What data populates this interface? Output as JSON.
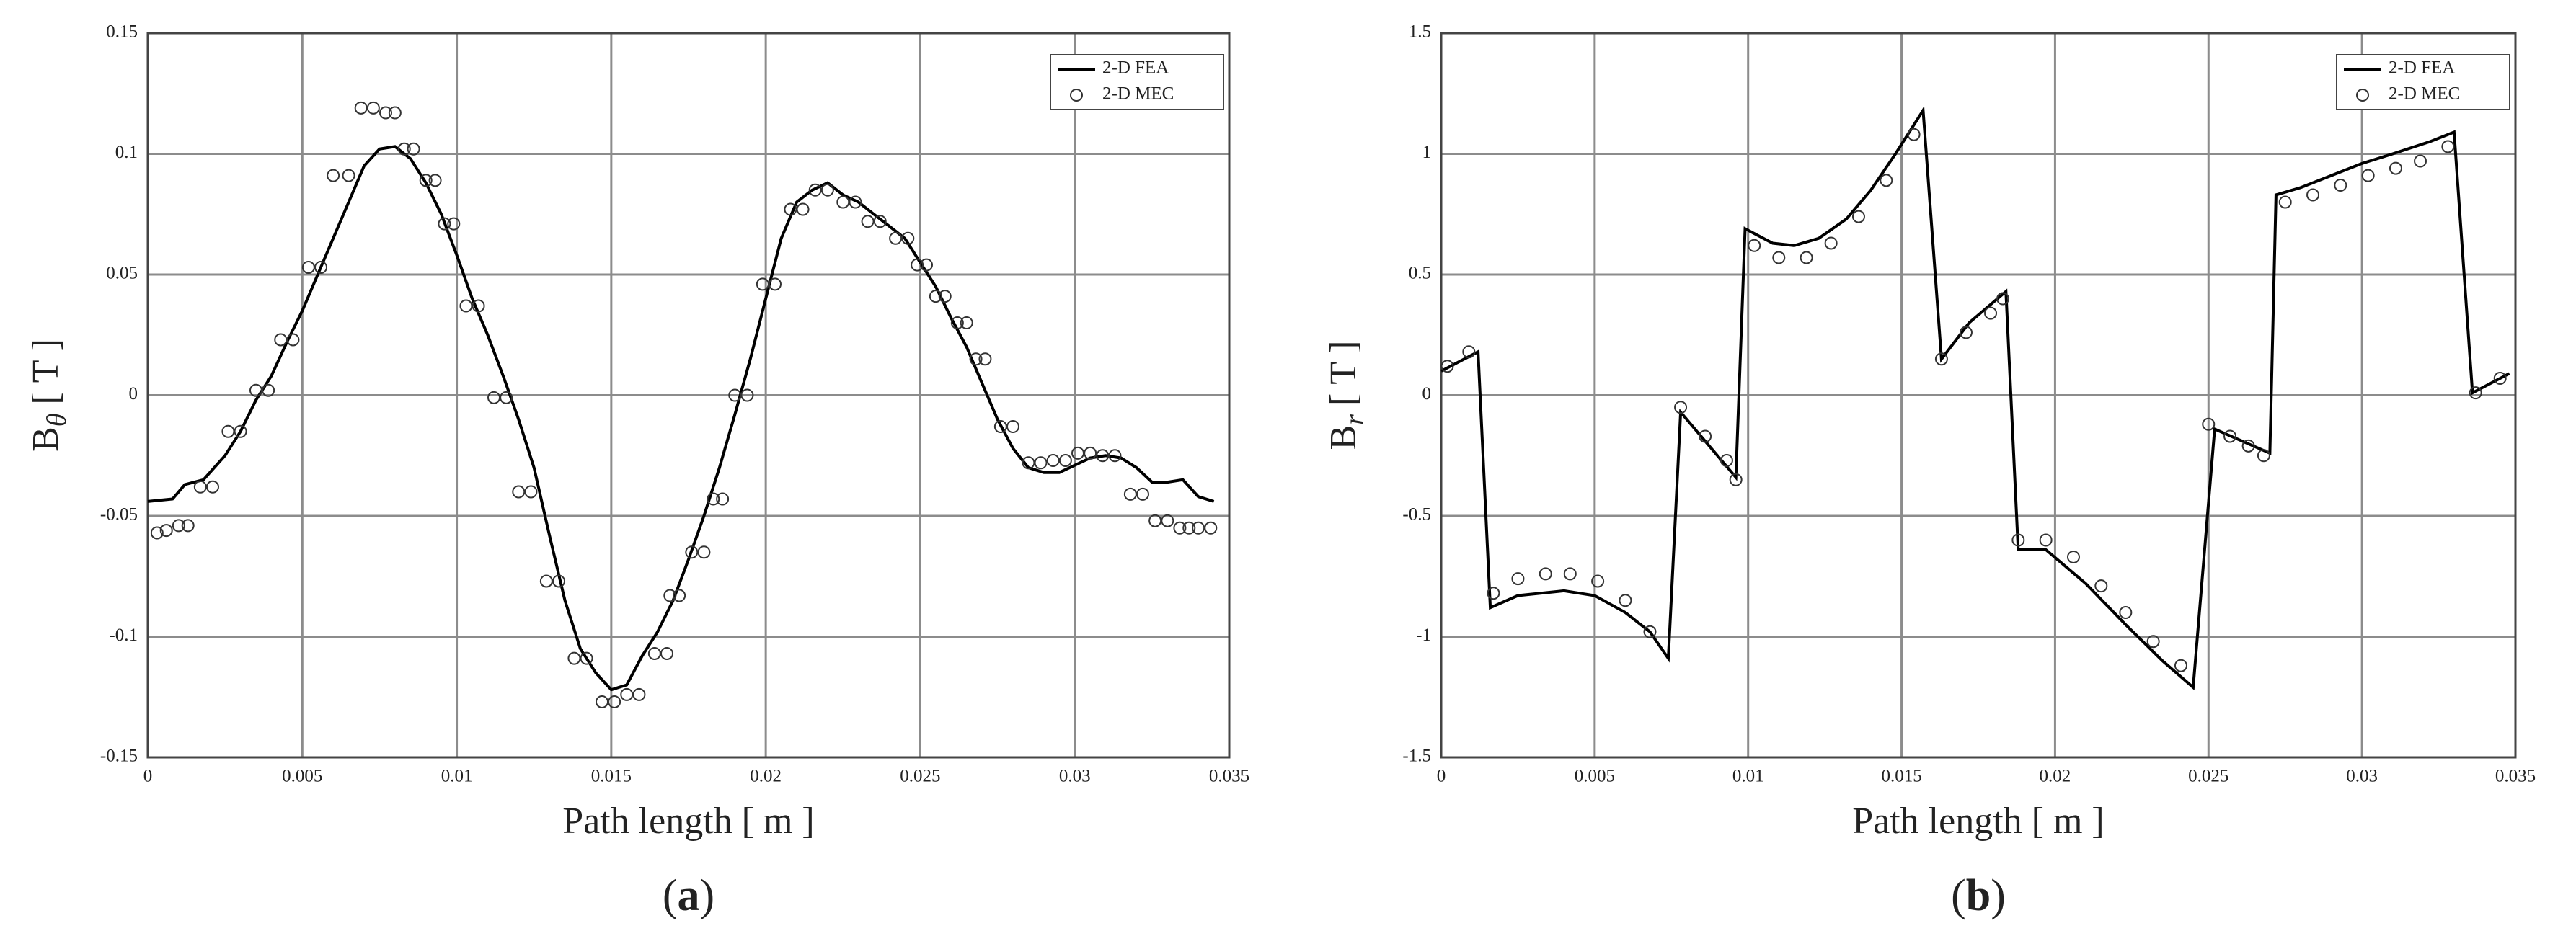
{
  "chart_data": [
    {
      "type": "line",
      "label_open": "(",
      "label_letter": "a",
      "label_close": ")",
      "xlabel": "Path length [ m ]",
      "ylabel": "B",
      "ylabel_sub": "θ",
      "ylabel_unit": "[ T ]",
      "xlim": [
        0,
        0.035
      ],
      "xticks": [
        0,
        0.005,
        0.01,
        0.015,
        0.02,
        0.025,
        0.03,
        0.035
      ],
      "ylim": [
        -0.15,
        0.15
      ],
      "yticks": [
        -0.15,
        -0.1,
        -0.05,
        0,
        0.05,
        0.1,
        0.15
      ],
      "grid": true,
      "legend": "upper right",
      "series": [
        {
          "name": "2-D FEA",
          "color": "#000000",
          "style": "line",
          "x": [
            0,
            0.0008,
            0.0012,
            0.0018,
            0.0025,
            0.003,
            0.0035,
            0.004,
            0.0045,
            0.005,
            0.0055,
            0.006,
            0.0065,
            0.007,
            0.0075,
            0.008,
            0.0085,
            0.009,
            0.0095,
            0.01,
            0.0105,
            0.011,
            0.0115,
            0.012,
            0.0125,
            0.013,
            0.0135,
            0.014,
            0.0145,
            0.015,
            0.0155,
            0.016,
            0.0165,
            0.017,
            0.0175,
            0.018,
            0.0185,
            0.019,
            0.0195,
            0.02,
            0.0205,
            0.021,
            0.0215,
            0.022,
            0.0225,
            0.023,
            0.0235,
            0.024,
            0.0245,
            0.025,
            0.0255,
            0.026,
            0.0265,
            0.027,
            0.0275,
            0.028,
            0.0285,
            0.029,
            0.0295,
            0.03,
            0.0305,
            0.031,
            0.0315,
            0.032,
            0.0325,
            0.033,
            0.0335,
            0.034,
            0.0345
          ],
          "values": [
            -0.044,
            -0.043,
            -0.037,
            -0.035,
            -0.025,
            -0.015,
            -0.002,
            0.008,
            0.022,
            0.035,
            0.05,
            0.065,
            0.08,
            0.095,
            0.102,
            0.103,
            0.098,
            0.088,
            0.075,
            0.058,
            0.04,
            0.025,
            0.008,
            -0.01,
            -0.03,
            -0.058,
            -0.085,
            -0.105,
            -0.115,
            -0.122,
            -0.12,
            -0.108,
            -0.098,
            -0.085,
            -0.068,
            -0.05,
            -0.03,
            -0.008,
            0.015,
            0.04,
            0.065,
            0.08,
            0.085,
            0.088,
            0.083,
            0.08,
            0.075,
            0.07,
            0.065,
            0.055,
            0.045,
            0.032,
            0.02,
            0.005,
            -0.01,
            -0.022,
            -0.03,
            -0.032,
            -0.032,
            -0.029,
            -0.026,
            -0.025,
            -0.026,
            -0.03,
            -0.036,
            -0.036,
            -0.035,
            -0.042,
            -0.044
          ]
        },
        {
          "name": "2-D MEC",
          "color": "#333333",
          "style": "markers",
          "x": [
            0.0003,
            0.0006,
            0.001,
            0.0013,
            0.0017,
            0.0021,
            0.0026,
            0.003,
            0.0035,
            0.0039,
            0.0043,
            0.0047,
            0.0052,
            0.0056,
            0.006,
            0.0065,
            0.0069,
            0.0073,
            0.0077,
            0.008,
            0.0083,
            0.0086,
            0.009,
            0.0093,
            0.0096,
            0.0099,
            0.0103,
            0.0107,
            0.0112,
            0.0116,
            0.012,
            0.0124,
            0.0129,
            0.0133,
            0.0138,
            0.0142,
            0.0147,
            0.0151,
            0.0155,
            0.0159,
            0.0164,
            0.0168,
            0.0169,
            0.0172,
            0.0176,
            0.018,
            0.0183,
            0.0186,
            0.019,
            0.0194,
            0.0199,
            0.0203,
            0.0208,
            0.0212,
            0.0216,
            0.022,
            0.0225,
            0.0229,
            0.0233,
            0.0237,
            0.0242,
            0.0246,
            0.0249,
            0.0252,
            0.0255,
            0.0258,
            0.0262,
            0.0265,
            0.0268,
            0.0271,
            0.0276,
            0.028,
            0.0285,
            0.0289,
            0.0293,
            0.0297,
            0.0301,
            0.0305,
            0.0309,
            0.0313,
            0.0318,
            0.0322,
            0.0326,
            0.033,
            0.0334,
            0.0337,
            0.034,
            0.0344
          ],
          "values": [
            -0.057,
            -0.056,
            -0.054,
            -0.054,
            -0.038,
            -0.038,
            -0.015,
            -0.015,
            0.002,
            0.002,
            0.023,
            0.023,
            0.053,
            0.053,
            0.091,
            0.091,
            0.119,
            0.119,
            0.117,
            0.117,
            0.102,
            0.102,
            0.089,
            0.089,
            0.071,
            0.071,
            0.037,
            0.037,
            -0.001,
            -0.001,
            -0.04,
            -0.04,
            -0.077,
            -0.077,
            -0.109,
            -0.109,
            -0.127,
            -0.127,
            -0.124,
            -0.124,
            -0.107,
            -0.107,
            -0.083,
            -0.083,
            -0.065,
            -0.065,
            -0.043,
            -0.043,
            0,
            0,
            0.046,
            0.046,
            0.077,
            0.077,
            0.085,
            0.085,
            0.08,
            0.08,
            0.072,
            0.072,
            0.065,
            0.065,
            0.054,
            0.054,
            0.041,
            0.041,
            0.03,
            0.03,
            0.015,
            0.015,
            -0.013,
            -0.013,
            -0.028,
            -0.028,
            -0.027,
            -0.027,
            -0.024,
            -0.024,
            -0.025,
            -0.025,
            -0.041,
            -0.041,
            -0.052,
            -0.052,
            -0.055,
            -0.055,
            -0.055,
            -0.055
          ]
        }
      ]
    },
    {
      "type": "line",
      "label_open": "(",
      "label_letter": "b",
      "label_close": ")",
      "xlabel": "Path length [ m ]",
      "ylabel": "B",
      "ylabel_sub": "r",
      "ylabel_unit": "[ T ]",
      "xlim": [
        0,
        0.035
      ],
      "xticks": [
        0,
        0.005,
        0.01,
        0.015,
        0.02,
        0.025,
        0.03,
        0.035
      ],
      "ylim": [
        -1.5,
        1.5
      ],
      "yticks": [
        -1.5,
        -1,
        -0.5,
        0,
        0.5,
        1,
        1.5
      ],
      "grid": true,
      "legend": "upper right",
      "series": [
        {
          "name": "2-D FEA",
          "color": "#000000",
          "style": "line",
          "x": [
            0,
            0.0012,
            0.0016,
            0.0025,
            0.004,
            0.005,
            0.006,
            0.0068,
            0.0074,
            0.0078,
            0.0088,
            0.0096,
            0.0099,
            0.0108,
            0.0115,
            0.0123,
            0.0132,
            0.014,
            0.0148,
            0.0157,
            0.0163,
            0.0172,
            0.0184,
            0.0188,
            0.0197,
            0.021,
            0.0223,
            0.0235,
            0.0245,
            0.0252,
            0.027,
            0.0272,
            0.028,
            0.029,
            0.03,
            0.031,
            0.0322,
            0.033,
            0.0336,
            0.0348
          ],
          "values": [
            0.1,
            0.18,
            -0.88,
            -0.83,
            -0.81,
            -0.83,
            -0.9,
            -0.98,
            -1.09,
            -0.07,
            -0.22,
            -0.34,
            0.69,
            0.63,
            0.62,
            0.65,
            0.73,
            0.85,
            1,
            1.18,
            0.15,
            0.3,
            0.43,
            -0.64,
            -0.64,
            -0.78,
            -0.95,
            -1.1,
            -1.21,
            -0.14,
            -0.24,
            0.83,
            0.86,
            0.91,
            0.96,
            1,
            1.05,
            1.09,
            0.01,
            0.09
          ]
        },
        {
          "name": "2-D MEC",
          "color": "#333333",
          "style": "markers",
          "x": [
            0.0002,
            0.0009,
            0.0017,
            0.0025,
            0.0034,
            0.0042,
            0.0051,
            0.006,
            0.0068,
            0.0078,
            0.0086,
            0.0093,
            0.0096,
            0.0102,
            0.011,
            0.0119,
            0.0127,
            0.0136,
            0.0145,
            0.0154,
            0.0163,
            0.0171,
            0.0179,
            0.0183,
            0.0188,
            0.0197,
            0.0206,
            0.0215,
            0.0223,
            0.0232,
            0.0241,
            0.025,
            0.0257,
            0.0263,
            0.0268,
            0.0275,
            0.0284,
            0.0293,
            0.0302,
            0.0311,
            0.0319,
            0.0328,
            0.0337,
            0.0345
          ],
          "values": [
            0.12,
            0.18,
            -0.82,
            -0.76,
            -0.74,
            -0.74,
            -0.77,
            -0.85,
            -0.98,
            -0.05,
            -0.17,
            -0.27,
            -0.35,
            0.62,
            0.57,
            0.57,
            0.63,
            0.74,
            0.89,
            1.08,
            0.15,
            0.26,
            0.34,
            0.4,
            -0.6,
            -0.6,
            -0.67,
            -0.79,
            -0.9,
            -1.02,
            -1.12,
            -0.12,
            -0.17,
            -0.21,
            -0.25,
            0.8,
            0.83,
            0.87,
            0.91,
            0.94,
            0.97,
            1.03,
            0.01,
            0.07
          ]
        }
      ]
    }
  ]
}
